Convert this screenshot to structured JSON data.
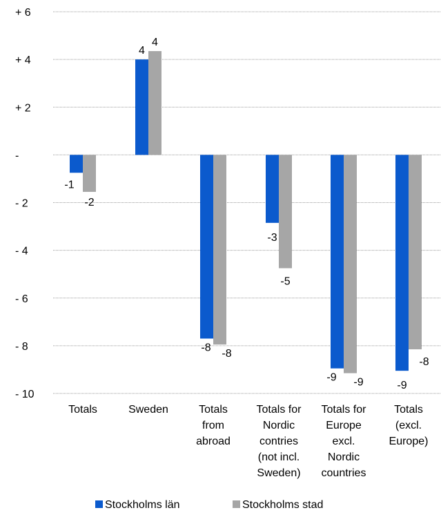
{
  "chart_data": {
    "type": "bar",
    "title": "",
    "xlabel": "",
    "ylabel": "",
    "ylim": [
      -10,
      6
    ],
    "yticks": [
      {
        "value": 6,
        "label": "+ 6"
      },
      {
        "value": 4,
        "label": "+ 4"
      },
      {
        "value": 2,
        "label": "+ 2"
      },
      {
        "value": 0,
        "label": "-"
      },
      {
        "value": -2,
        "label": "- 2"
      },
      {
        "value": -4,
        "label": "- 4"
      },
      {
        "value": -6,
        "label": "- 6"
      },
      {
        "value": -8,
        "label": "- 8"
      },
      {
        "value": -10,
        "label": "- 10"
      }
    ],
    "grid": true,
    "legend_position": "bottom",
    "categories": [
      [
        "Totals"
      ],
      [
        "Sweden"
      ],
      [
        "Totals",
        "from",
        "abroad"
      ],
      [
        "Totals for",
        "Nordic",
        "contries",
        "(not incl.",
        "Sweden)"
      ],
      [
        "Totals for",
        "Europe",
        "excl.",
        "Nordic",
        "countries"
      ],
      [
        "Totals",
        "(excl.",
        "Europe)"
      ]
    ],
    "series": [
      {
        "name": "Stockholms län",
        "color": "#0B5ACD",
        "values": [
          -0.75,
          4.0,
          -7.7,
          -2.85,
          -8.95,
          -9.05
        ],
        "labels": [
          "-1",
          "4",
          "-8",
          "-3",
          "-9",
          "-9"
        ]
      },
      {
        "name": "Stockholms stad",
        "color": "#A6A6A6",
        "values": [
          -1.55,
          4.35,
          -7.95,
          -4.75,
          -9.15,
          -8.15
        ],
        "labels": [
          "-2",
          "4",
          "-8",
          "-5",
          "-9",
          "-8"
        ]
      }
    ]
  }
}
